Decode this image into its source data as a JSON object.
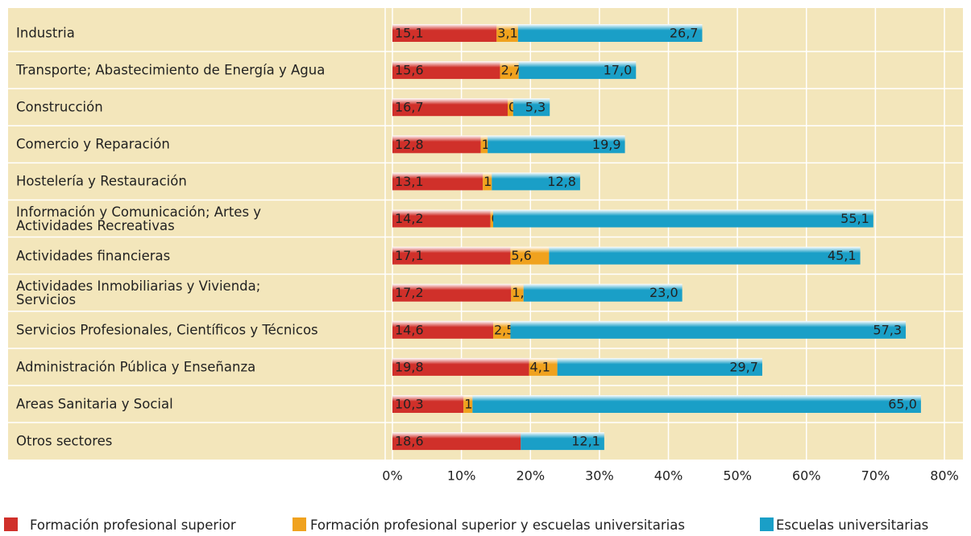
{
  "chart_data": {
    "type": "stacked_bar_horizontal",
    "categories": [
      "Industria",
      "Transporte; Abastecimiento de Energía y Agua",
      "Construcción",
      "Comercio y Reparación",
      "Hostelería y Restauración",
      "Información y Comunicación; Artes y\nActividades Recreativas",
      "Actividades financieras",
      "Actividades Inmobiliarias y Vivienda;\nServicios",
      "Servicios Profesionales, Científicos y Técnicos",
      "Administración Pública y Enseñanza",
      "Areas Sanitaria y Social",
      "Otros sectores"
    ],
    "series": [
      {
        "name": "Formación profesional superior",
        "color": "#d0302a",
        "values": [
          15.1,
          15.6,
          16.7,
          12.8,
          13.1,
          14.2,
          17.1,
          17.2,
          14.6,
          19.8,
          10.3,
          18.6
        ],
        "value_labels": [
          "15,1",
          "15,6",
          "16,7",
          "12,8",
          "13,1",
          "14,2",
          "17,1",
          "17,2",
          "14,6",
          "19,8",
          "10,3",
          "18,6"
        ]
      },
      {
        "name": "Formación profesional superior y escuelas universitarias",
        "color": "#f0a21e",
        "values": [
          3.1,
          2.7,
          0.8,
          1.0,
          1.3,
          0.4,
          5.6,
          1.8,
          2.5,
          4.1,
          1.3,
          null
        ],
        "value_labels": [
          "3,1",
          "2,7",
          "0,8",
          "1,0",
          "1,3",
          "0,4",
          "5,6",
          "1,8",
          "2,5",
          "4,1",
          "1,3",
          null
        ]
      },
      {
        "name": "Escuelas universitarias",
        "color": "#1a9fc7",
        "values": [
          26.7,
          17.0,
          5.3,
          19.9,
          12.8,
          55.1,
          45.1,
          23.0,
          57.3,
          29.7,
          65.0,
          12.1
        ],
        "value_labels": [
          "26,7",
          "17,0",
          "5,3",
          "19,9",
          "12,8",
          "55,1",
          "45,1",
          "23,0",
          "57,3",
          "29,7",
          "65,0",
          "12,1"
        ]
      }
    ],
    "xlim": [
      0,
      80
    ],
    "xticks": [
      {
        "value": 0,
        "label": "0%"
      },
      {
        "value": 10,
        "label": "10%"
      },
      {
        "value": 20,
        "label": "20%"
      },
      {
        "value": 30,
        "label": "30%"
      },
      {
        "value": 40,
        "label": "40%"
      },
      {
        "value": 50,
        "label": "50%"
      },
      {
        "value": 60,
        "label": "60%"
      },
      {
        "value": 70,
        "label": "70%"
      },
      {
        "value": 80,
        "label": "80%"
      }
    ],
    "grid": true
  }
}
